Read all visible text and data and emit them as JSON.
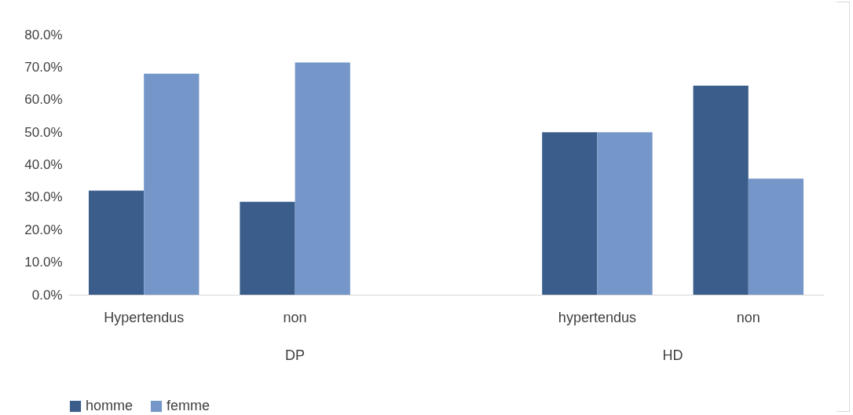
{
  "chart_data": {
    "type": "bar",
    "categories": [
      "Hypertendus",
      "non",
      null,
      "hypertendus",
      "non"
    ],
    "series": [
      {
        "name": "homme",
        "color": "#3a5d8b",
        "values": [
          32.0,
          28.6,
          null,
          50.0,
          64.3
        ]
      },
      {
        "name": "femme",
        "color": "#7596c8",
        "values": [
          68.0,
          71.4,
          null,
          50.0,
          35.7
        ]
      }
    ],
    "ylim": [
      0,
      80
    ],
    "yticks": [
      {
        "value": 0,
        "label": "0.0%"
      },
      {
        "value": 10,
        "label": "10.0%"
      },
      {
        "value": 20,
        "label": "20.0%"
      },
      {
        "value": 30,
        "label": "30.0%"
      },
      {
        "value": 40,
        "label": "40.0%"
      },
      {
        "value": 50,
        "label": "50.0%"
      },
      {
        "value": 60,
        "label": "60.0%"
      },
      {
        "value": 70,
        "label": "70.0%"
      },
      {
        "value": 80,
        "label": "80.0%"
      }
    ],
    "annotations": [
      "DP",
      "HD"
    ],
    "grid": false,
    "legend": "bottom"
  }
}
